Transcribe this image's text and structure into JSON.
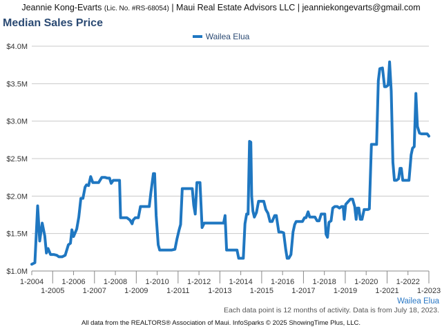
{
  "header": {
    "agent_name": "Jeannie Kong-Evarts",
    "license": "(Lic. No. #RS-68054)",
    "agency_and_email": "| Maui Real Estate Advisors LLC | jeanniekongevarts@gmail.com"
  },
  "colors": {
    "series": "#1f77c1",
    "title": "#2b4a73",
    "grid": "#c8c8c8"
  },
  "chart_data": {
    "type": "line",
    "title": "Median Sales Price",
    "series": [
      {
        "name": "Wailea Elua",
        "points": [
          [
            2004.0,
            1.09
          ],
          [
            2004.15,
            1.11
          ],
          [
            2004.28,
            1.87
          ],
          [
            2004.38,
            1.4
          ],
          [
            2004.5,
            1.64
          ],
          [
            2004.62,
            1.47
          ],
          [
            2004.7,
            1.24
          ],
          [
            2004.78,
            1.3
          ],
          [
            2004.9,
            1.22
          ],
          [
            2005.05,
            1.22
          ],
          [
            2005.2,
            1.21
          ],
          [
            2005.3,
            1.19
          ],
          [
            2005.45,
            1.19
          ],
          [
            2005.6,
            1.21
          ],
          [
            2005.75,
            1.35
          ],
          [
            2005.85,
            1.37
          ],
          [
            2005.92,
            1.55
          ],
          [
            2006.0,
            1.46
          ],
          [
            2006.15,
            1.56
          ],
          [
            2006.25,
            1.72
          ],
          [
            2006.35,
            1.97
          ],
          [
            2006.45,
            1.97
          ],
          [
            2006.55,
            2.12
          ],
          [
            2006.62,
            2.15
          ],
          [
            2006.72,
            2.14
          ],
          [
            2006.82,
            2.26
          ],
          [
            2006.92,
            2.18
          ],
          [
            2007.05,
            2.18
          ],
          [
            2007.2,
            2.18
          ],
          [
            2007.35,
            2.25
          ],
          [
            2007.5,
            2.25
          ],
          [
            2007.62,
            2.24
          ],
          [
            2007.72,
            2.24
          ],
          [
            2007.8,
            2.17
          ],
          [
            2007.9,
            2.21
          ],
          [
            2008.05,
            2.21
          ],
          [
            2008.2,
            2.21
          ],
          [
            2008.25,
            1.71
          ],
          [
            2008.4,
            1.71
          ],
          [
            2008.55,
            1.71
          ],
          [
            2008.7,
            1.68
          ],
          [
            2008.8,
            1.63
          ],
          [
            2008.85,
            1.68
          ],
          [
            2008.95,
            1.71
          ],
          [
            2009.1,
            1.71
          ],
          [
            2009.2,
            1.86
          ],
          [
            2009.35,
            1.86
          ],
          [
            2009.5,
            1.86
          ],
          [
            2009.62,
            1.86
          ],
          [
            2009.7,
            2.05
          ],
          [
            2009.82,
            2.3
          ],
          [
            2009.88,
            2.3
          ],
          [
            2009.95,
            1.74
          ],
          [
            2010.05,
            1.35
          ],
          [
            2010.12,
            1.28
          ],
          [
            2010.3,
            1.28
          ],
          [
            2010.5,
            1.28
          ],
          [
            2010.7,
            1.28
          ],
          [
            2010.85,
            1.29
          ],
          [
            2010.95,
            1.43
          ],
          [
            2011.05,
            1.55
          ],
          [
            2011.12,
            1.62
          ],
          [
            2011.2,
            2.1
          ],
          [
            2011.35,
            2.1
          ],
          [
            2011.5,
            2.1
          ],
          [
            2011.68,
            2.1
          ],
          [
            2011.75,
            1.88
          ],
          [
            2011.82,
            1.76
          ],
          [
            2011.9,
            2.18
          ],
          [
            2012.05,
            2.18
          ],
          [
            2012.15,
            1.58
          ],
          [
            2012.25,
            1.64
          ],
          [
            2012.45,
            1.64
          ],
          [
            2012.7,
            1.64
          ],
          [
            2012.9,
            1.64
          ],
          [
            2013.1,
            1.64
          ],
          [
            2013.18,
            1.64
          ],
          [
            2013.25,
            1.74
          ],
          [
            2013.32,
            1.28
          ],
          [
            2013.5,
            1.28
          ],
          [
            2013.7,
            1.28
          ],
          [
            2013.82,
            1.28
          ],
          [
            2013.9,
            1.17
          ],
          [
            2014.05,
            1.17
          ],
          [
            2014.12,
            1.17
          ],
          [
            2014.2,
            1.63
          ],
          [
            2014.28,
            1.76
          ],
          [
            2014.35,
            1.76
          ],
          [
            2014.42,
            2.73
          ],
          [
            2014.48,
            2.72
          ],
          [
            2014.52,
            2.0
          ],
          [
            2014.58,
            1.8
          ],
          [
            2014.65,
            1.72
          ],
          [
            2014.75,
            1.78
          ],
          [
            2014.85,
            1.93
          ],
          [
            2014.95,
            1.93
          ],
          [
            2015.1,
            1.93
          ],
          [
            2015.2,
            1.82
          ],
          [
            2015.3,
            1.77
          ],
          [
            2015.4,
            1.66
          ],
          [
            2015.5,
            1.66
          ],
          [
            2015.62,
            1.74
          ],
          [
            2015.7,
            1.74
          ],
          [
            2015.82,
            1.52
          ],
          [
            2015.95,
            1.52
          ],
          [
            2016.05,
            1.51
          ],
          [
            2016.15,
            1.29
          ],
          [
            2016.22,
            1.17
          ],
          [
            2016.3,
            1.17
          ],
          [
            2016.4,
            1.22
          ],
          [
            2016.5,
            1.52
          ],
          [
            2016.58,
            1.62
          ],
          [
            2016.65,
            1.66
          ],
          [
            2016.8,
            1.66
          ],
          [
            2016.95,
            1.66
          ],
          [
            2017.05,
            1.71
          ],
          [
            2017.12,
            1.71
          ],
          [
            2017.22,
            1.79
          ],
          [
            2017.3,
            1.72
          ],
          [
            2017.4,
            1.72
          ],
          [
            2017.55,
            1.72
          ],
          [
            2017.65,
            1.67
          ],
          [
            2017.75,
            1.67
          ],
          [
            2017.85,
            1.76
          ],
          [
            2017.95,
            1.76
          ],
          [
            2018.02,
            1.76
          ],
          [
            2018.08,
            1.49
          ],
          [
            2018.15,
            1.45
          ],
          [
            2018.22,
            1.65
          ],
          [
            2018.32,
            1.67
          ],
          [
            2018.4,
            1.84
          ],
          [
            2018.5,
            1.86
          ],
          [
            2018.62,
            1.86
          ],
          [
            2018.72,
            1.84
          ],
          [
            2018.82,
            1.86
          ],
          [
            2018.9,
            1.86
          ],
          [
            2018.95,
            1.69
          ],
          [
            2019.02,
            1.89
          ],
          [
            2019.12,
            1.92
          ],
          [
            2019.25,
            1.96
          ],
          [
            2019.35,
            1.96
          ],
          [
            2019.45,
            1.86
          ],
          [
            2019.52,
            1.69
          ],
          [
            2019.58,
            1.84
          ],
          [
            2019.65,
            1.84
          ],
          [
            2019.72,
            1.69
          ],
          [
            2019.8,
            1.69
          ],
          [
            2019.9,
            1.82
          ],
          [
            2020.0,
            1.82
          ],
          [
            2020.08,
            1.82
          ],
          [
            2020.15,
            1.83
          ],
          [
            2020.25,
            2.69
          ],
          [
            2020.35,
            2.69
          ],
          [
            2020.5,
            2.69
          ],
          [
            2020.58,
            3.54
          ],
          [
            2020.65,
            3.7
          ],
          [
            2020.78,
            3.71
          ],
          [
            2020.88,
            3.46
          ],
          [
            2020.95,
            3.46
          ],
          [
            2021.05,
            3.48
          ],
          [
            2021.12,
            3.79
          ],
          [
            2021.2,
            3.4
          ],
          [
            2021.28,
            2.45
          ],
          [
            2021.35,
            2.21
          ],
          [
            2021.45,
            2.21
          ],
          [
            2021.55,
            2.23
          ],
          [
            2021.62,
            2.37
          ],
          [
            2021.68,
            2.37
          ],
          [
            2021.75,
            2.21
          ],
          [
            2021.85,
            2.21
          ],
          [
            2021.95,
            2.21
          ],
          [
            2022.05,
            2.21
          ],
          [
            2022.15,
            2.55
          ],
          [
            2022.22,
            2.64
          ],
          [
            2022.3,
            2.66
          ],
          [
            2022.38,
            3.37
          ],
          [
            2022.45,
            2.93
          ],
          [
            2022.55,
            2.84
          ],
          [
            2022.65,
            2.83
          ],
          [
            2022.75,
            2.83
          ],
          [
            2022.85,
            2.83
          ],
          [
            2022.92,
            2.83
          ],
          [
            2023.0,
            2.8
          ]
        ]
      }
    ],
    "x_range": [
      2004.0,
      2023.0
    ],
    "y_range": [
      1.0,
      4.0
    ],
    "y_ticks": [
      {
        "value": 1.0,
        "label": "$1.0M"
      },
      {
        "value": 1.5,
        "label": "$1.5M"
      },
      {
        "value": 2.0,
        "label": "$2.0M"
      },
      {
        "value": 2.5,
        "label": "$2.5M"
      },
      {
        "value": 3.0,
        "label": "$3.0M"
      },
      {
        "value": 3.5,
        "label": "$3.5M"
      },
      {
        "value": 4.0,
        "label": "$4.0M"
      }
    ],
    "x_ticks": [
      {
        "value": 2004,
        "label": "1-2004",
        "row": 1
      },
      {
        "value": 2005,
        "label": "1-2005",
        "row": 2
      },
      {
        "value": 2006,
        "label": "1-2006",
        "row": 1
      },
      {
        "value": 2007,
        "label": "1-2007",
        "row": 2
      },
      {
        "value": 2008,
        "label": "1-2008",
        "row": 1
      },
      {
        "value": 2009,
        "label": "1-2009",
        "row": 2
      },
      {
        "value": 2010,
        "label": "1-2010",
        "row": 1
      },
      {
        "value": 2011,
        "label": "1-2011",
        "row": 2
      },
      {
        "value": 2012,
        "label": "1-2012",
        "row": 1
      },
      {
        "value": 2013,
        "label": "1-2013",
        "row": 2
      },
      {
        "value": 2014,
        "label": "1-2014",
        "row": 1
      },
      {
        "value": 2015,
        "label": "1-2015",
        "row": 2
      },
      {
        "value": 2016,
        "label": "1-2016",
        "row": 1
      },
      {
        "value": 2017,
        "label": "1-2017",
        "row": 2
      },
      {
        "value": 2018,
        "label": "1-2018",
        "row": 1
      },
      {
        "value": 2019,
        "label": "1-2019",
        "row": 2
      },
      {
        "value": 2020,
        "label": "1-2020",
        "row": 1
      },
      {
        "value": 2021,
        "label": "1-2021",
        "row": 2
      },
      {
        "value": 2022,
        "label": "1-2022",
        "row": 1
      },
      {
        "value": 2023,
        "label": "1-2023",
        "row": 2
      }
    ],
    "grid": true,
    "legend_position": "top-center",
    "series_end_label": "Wailea Elua"
  },
  "note": "Each data point is 12 months of activity. Data is from July 18, 2023.",
  "footer": "All data from the REALTORS® Association of Maui. InfoSparks © 2025 ShowingTime Plus, LLC."
}
